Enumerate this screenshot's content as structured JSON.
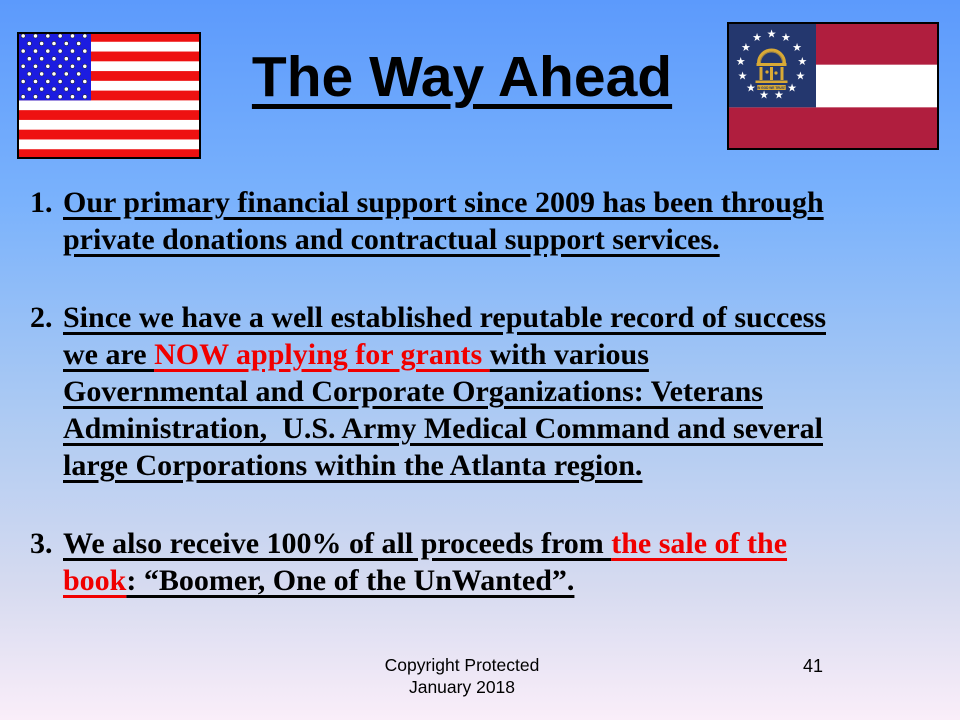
{
  "slide": {
    "title": "The Way Ahead",
    "page_number": "41",
    "footer": {
      "line1": "Copyright Protected",
      "line2": "January 2018"
    }
  },
  "flags": {
    "us": {
      "name": "flag of the United States"
    },
    "georgia": {
      "name": "flag of the State of Georgia",
      "motto": "IN GOD WE TRUST"
    }
  },
  "list_items": [
    {
      "number": "1.",
      "lines": [
        [
          {
            "text": "Our primary financial support since 2009 has been through",
            "color": "black"
          }
        ],
        [
          {
            "text": "private donations and contractual support services.",
            "color": "black"
          }
        ]
      ]
    },
    {
      "number": "2.",
      "lines": [
        [
          {
            "text": "Since we have a well established reputable record of success",
            "color": "black"
          }
        ],
        [
          {
            "text": "we are ",
            "color": "black"
          },
          {
            "text": "NOW applying for grants ",
            "color": "red"
          },
          {
            "text": "with various",
            "color": "black"
          }
        ],
        [
          {
            "text": "Governmental and Corporate Organizations: Veterans",
            "color": "black"
          }
        ],
        [
          {
            "text": "Administration,  U.S. Army Medical Command and several",
            "color": "black"
          }
        ],
        [
          {
            "text": "large Corporations within the Atlanta region.",
            "color": "black"
          }
        ]
      ]
    },
    {
      "number": "3.",
      "lines": [
        [
          {
            "text": "We also receive 100% of all proceeds from ",
            "color": "black"
          },
          {
            "text": "the sale of the",
            "color": "red"
          }
        ],
        [
          {
            "text": "book",
            "color": "red"
          },
          {
            "text": ": “Boomer, One of the UnWanted”.",
            "color": "black"
          }
        ]
      ]
    }
  ],
  "colors": {
    "background_top": "#5c9afc",
    "background_upper": "#7ab2fc",
    "background_mid": "#aac9f3",
    "background_lower": "#d7dbf0",
    "background_bottom": "#faeef9",
    "text_black": "#000000",
    "text_red": "#f00000",
    "us_flag_red": "#ee1111",
    "us_flag_blue": "#1c1ce0",
    "ga_flag_red": "#b01e3e",
    "ga_flag_navy": "#24376e",
    "ga_flag_gold": "#d9a935"
  }
}
